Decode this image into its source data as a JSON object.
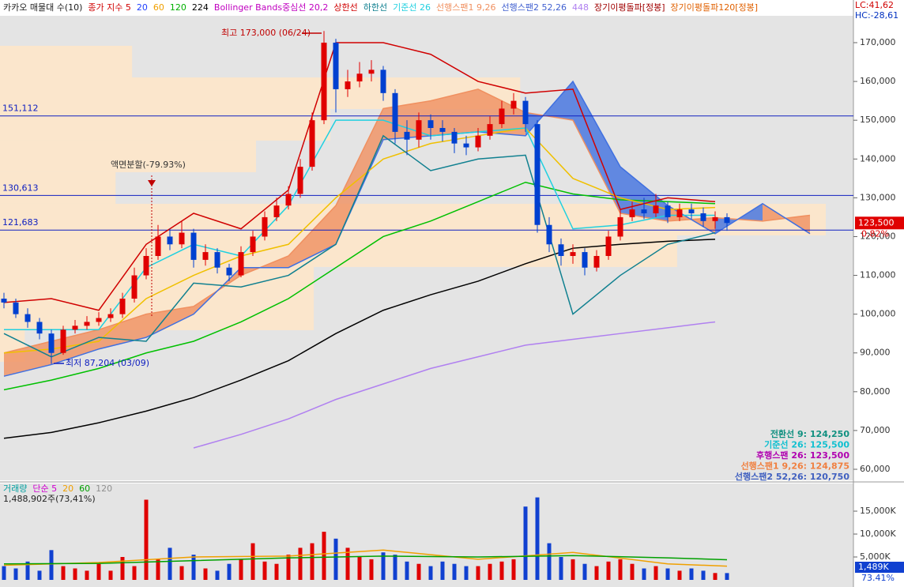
{
  "chart_data": [
    {
      "type": "candlestick",
      "legend": [
        {
          "text": "카카오 매물대 수(10)",
          "color": "#202020"
        },
        {
          "text": "종가 지수 5",
          "color": "#d00000"
        },
        {
          "text": "20",
          "color": "#2040ff"
        },
        {
          "text": "60",
          "color": "#f0a000"
        },
        {
          "text": "120",
          "color": "#00b000"
        },
        {
          "text": "224",
          "color": "#000000"
        },
        {
          "text": "Bollinger Bands중심선 20,2",
          "color": "#c000c0"
        },
        {
          "text": "상한선",
          "color": "#d00000"
        },
        {
          "text": "하한선",
          "color": "#108090"
        },
        {
          "text": "기준선 26",
          "color": "#20d0e0"
        },
        {
          "text": "선행스팬1 9,26",
          "color": "#f09060"
        },
        {
          "text": "선행스팬2 52,26",
          "color": "#4060d0"
        },
        {
          "text": "448",
          "color": "#b080f0"
        },
        {
          "text": "장기이평돌파[정봉]",
          "color": "#a00000"
        },
        {
          "text": "장기이평돌파120[정봉]",
          "color": "#e06000"
        }
      ],
      "corner_labels": [
        {
          "text": "LC:41,62",
          "color": "#d00000"
        },
        {
          "text": "HC:-28,61",
          "color": "#0030c0"
        }
      ],
      "open": [
        104000,
        103000,
        100000,
        98000,
        95000,
        90000,
        96000,
        97000,
        98000,
        99000,
        100000,
        104000,
        110000,
        115000,
        120000,
        118000,
        121000,
        114000,
        116000,
        112000,
        110000,
        116000,
        120000,
        125000,
        128000,
        131000,
        138000,
        150000,
        170000,
        158000,
        160000,
        162000,
        163000,
        157000,
        147000,
        145000,
        150000,
        148000,
        147000,
        144000,
        143000,
        146000,
        149000,
        153000,
        155000,
        149000,
        123000,
        118000,
        115000,
        116000,
        112000,
        115000,
        120000,
        125000,
        127000,
        126000,
        128000,
        125000,
        127000,
        126000,
        124000,
        125000
      ],
      "high": [
        105500,
        104000,
        101500,
        99000,
        96000,
        97000,
        98500,
        99500,
        100500,
        101500,
        105500,
        112000,
        117000,
        123000,
        122000,
        124000,
        122000,
        118000,
        117000,
        113000,
        117500,
        121500,
        126500,
        130000,
        133000,
        140000,
        152000,
        173000,
        171000,
        163000,
        165000,
        165500,
        164000,
        158000,
        150000,
        152000,
        151500,
        150000,
        148000,
        146000,
        148000,
        151000,
        155000,
        157000,
        156000,
        150000,
        125000,
        119500,
        118000,
        117000,
        116500,
        121500,
        127000,
        129000,
        130000,
        131000,
        129000,
        128500,
        128500,
        127500,
        126500,
        126000
      ],
      "low": [
        101500,
        99000,
        96500,
        93500,
        87204,
        89500,
        95000,
        96000,
        97000,
        98000,
        99000,
        103000,
        109000,
        114000,
        116500,
        117000,
        112000,
        112500,
        110500,
        108500,
        109500,
        115000,
        119000,
        124000,
        127000,
        130000,
        137000,
        149000,
        152000,
        156000,
        158500,
        160000,
        155000,
        144000,
        141000,
        143000,
        145000,
        144500,
        141500,
        141000,
        142000,
        145000,
        148000,
        151500,
        147000,
        121000,
        116000,
        112500,
        113000,
        110000,
        111000,
        114000,
        119000,
        124000,
        124500,
        125000,
        123500,
        124000,
        124500,
        122500,
        122000,
        121500
      ],
      "close": [
        103000,
        100000,
        98000,
        95000,
        90000,
        96000,
        97000,
        98000,
        99000,
        100000,
        104000,
        110000,
        115000,
        120000,
        118000,
        121000,
        114000,
        116000,
        112000,
        110000,
        116000,
        120000,
        125000,
        128000,
        131000,
        138000,
        150000,
        170000,
        158000,
        160000,
        162000,
        163000,
        157000,
        147000,
        145000,
        150000,
        148000,
        147000,
        144000,
        143000,
        146000,
        149000,
        153000,
        155000,
        149000,
        123000,
        118000,
        115000,
        116000,
        112000,
        115000,
        120000,
        125000,
        127000,
        126000,
        128000,
        125000,
        127000,
        126000,
        124000,
        125000,
        123500
      ],
      "cloud": {
        "x": [
          0,
          4,
          8,
          12,
          16,
          20,
          24,
          28,
          32,
          36,
          40,
          44,
          48,
          52,
          56,
          60,
          64,
          68
        ],
        "span1": {
          "color": "#f09060",
          "values": [
            90000,
            93000,
            96000,
            100000,
            102000,
            110000,
            115000,
            128000,
            153000,
            155000,
            158000,
            152000,
            150000,
            126000,
            124000,
            124875,
            124000,
            125500
          ]
        },
        "span2": {
          "color": "#4070e0",
          "values": [
            84000,
            87000,
            91000,
            94000,
            100000,
            112000,
            112000,
            118000,
            145000,
            146000,
            147000,
            146000,
            160000,
            138000,
            128000,
            120750,
            128500,
            120750
          ]
        }
      },
      "series": [
        {
          "color": "#000000",
          "x": [
            0,
            4,
            8,
            12,
            16,
            20,
            24,
            28,
            32,
            36,
            40,
            44,
            48,
            52,
            56,
            60
          ],
          "values": [
            68000,
            69500,
            72000,
            75000,
            78500,
            83000,
            88000,
            95000,
            101000,
            105000,
            108500,
            113000,
            117000,
            118000,
            118800,
            119300
          ]
        },
        {
          "color": "#b080f0",
          "x": [
            16,
            20,
            24,
            28,
            32,
            36,
            40,
            44,
            48,
            52,
            56,
            60
          ],
          "values": [
            65500,
            69000,
            73000,
            78000,
            82000,
            86000,
            89000,
            92000,
            93500,
            95000,
            96500,
            98000
          ]
        },
        {
          "color": "#00c000",
          "x": [
            0,
            4,
            8,
            12,
            16,
            20,
            24,
            28,
            32,
            36,
            40,
            44,
            48,
            52,
            56,
            60
          ],
          "values": [
            80500,
            83000,
            86000,
            90000,
            93000,
            98000,
            104000,
            112000,
            120000,
            124000,
            129000,
            134000,
            131000,
            129500,
            129000,
            128500
          ]
        },
        {
          "color": "#f0c000",
          "x": [
            0,
            4,
            8,
            12,
            16,
            20,
            24,
            28,
            32,
            36,
            40,
            44,
            48,
            52,
            56,
            60
          ],
          "values": [
            90000,
            91000,
            93000,
            104000,
            110000,
            115000,
            118000,
            130000,
            140000,
            144000,
            146000,
            148000,
            135000,
            130000,
            127000,
            127500
          ]
        },
        {
          "color": "#d00000",
          "x": [
            0,
            4,
            8,
            12,
            16,
            20,
            24,
            28,
            32,
            36,
            40,
            44,
            48,
            52,
            56,
            60
          ],
          "values": [
            103000,
            104000,
            101000,
            118000,
            126000,
            122000,
            132000,
            170000,
            170000,
            167000,
            160000,
            157000,
            158000,
            127000,
            130000,
            129000
          ]
        },
        {
          "color": "#108090",
          "x": [
            0,
            4,
            8,
            12,
            16,
            20,
            24,
            28,
            32,
            36,
            40,
            44,
            48,
            52,
            56,
            60
          ],
          "values": [
            95000,
            89000,
            94000,
            93000,
            108000,
            107000,
            110000,
            118000,
            146000,
            137000,
            140000,
            141000,
            100000,
            110000,
            118000,
            121000
          ]
        },
        {
          "color": "#20d0e0",
          "x": [
            0,
            4,
            8,
            12,
            16,
            20,
            24,
            28,
            32,
            36,
            40,
            44,
            48,
            52,
            56,
            60
          ],
          "values": [
            96000,
            96000,
            96000,
            112000,
            118000,
            115000,
            128000,
            150000,
            150000,
            146000,
            147000,
            148000,
            122000,
            123000,
            125500,
            125500
          ]
        }
      ],
      "volume_profile": {
        "bins": [
          87719,
          95866,
          104012,
          112159,
          120305,
          128452,
          136599,
          144745,
          152892,
          161039,
          169185
        ],
        "values": [
          3,
          38,
          38,
          82,
          100,
          14,
          31,
          40,
          63,
          16
        ]
      },
      "levels": [
        {
          "value": 151112,
          "label": "151,112"
        },
        {
          "value": 130613,
          "label": "130,613"
        },
        {
          "value": 121683,
          "label": "121,683"
        }
      ],
      "current": {
        "value": 123500,
        "label": "123,500",
        "change": "0.82%"
      },
      "annotations": {
        "high": "최고 173,000 (06/24)",
        "low": "최저 87,204 (03/09)",
        "split": "액면분할(-79.93%)"
      },
      "info": [
        {
          "text": "전환선 9: 124,250",
          "color": "#109080"
        },
        {
          "text": "기준선 26: 125,500",
          "color": "#10c0d0"
        },
        {
          "text": "후행스팬 26: 123,500",
          "color": "#b000b0"
        },
        {
          "text": "선행스팬1 9,26: 124,875",
          "color": "#f08040"
        },
        {
          "text": "선행스팬2 52,26: 120,750",
          "color": "#4060c0"
        }
      ],
      "ylim": [
        57760,
        176925
      ],
      "yticks": [
        {
          "value": 60000,
          "label": "60,000"
        },
        {
          "value": 70000,
          "label": "70,000"
        },
        {
          "value": 80000,
          "label": "80,000"
        },
        {
          "value": 90000,
          "label": "90,000"
        },
        {
          "value": 100000,
          "label": "100,000"
        },
        {
          "value": 110000,
          "label": "110,000"
        },
        {
          "value": 120000,
          "label": "120,000"
        },
        {
          "value": 130000,
          "label": "130,000"
        },
        {
          "value": 140000,
          "label": "140,000"
        },
        {
          "value": 150000,
          "label": "150,000"
        },
        {
          "value": 160000,
          "label": "160,000"
        },
        {
          "value": 170000,
          "label": "170,000"
        }
      ]
    },
    {
      "type": "bar",
      "legend": [
        {
          "text": "거래량",
          "color": "#00a0a0"
        },
        {
          "text": "단순 5",
          "color": "#d000d0"
        },
        {
          "text": "20",
          "color": "#f0a000"
        },
        {
          "text": "60",
          "color": "#00a000"
        },
        {
          "text": "120",
          "color": "#909090"
        }
      ],
      "subtitle": "1,488,902주(73,41%)",
      "values": [
        3000,
        2500,
        4000,
        2000,
        6500,
        3000,
        2500,
        2000,
        3500,
        2000,
        5000,
        3000,
        17500,
        4500,
        7000,
        3000,
        5500,
        2500,
        2000,
        3500,
        4500,
        8000,
        4000,
        3500,
        5500,
        7000,
        8000,
        10500,
        9000,
        7000,
        5000,
        4500,
        6000,
        5500,
        4000,
        3500,
        3000,
        4000,
        3500,
        3000,
        3000,
        3500,
        4000,
        4500,
        16000,
        18000,
        8000,
        5000,
        4500,
        3500,
        3000,
        4000,
        4500,
        3500,
        2500,
        3000,
        2500,
        2000,
        2500,
        2000,
        1500,
        1489
      ],
      "up_color": "#e00000",
      "down_color": "#1040d0",
      "series": [
        {
          "color": "#f0a000",
          "x": [
            0,
            8,
            16,
            24,
            32,
            40,
            48,
            56,
            61
          ],
          "values": [
            3200,
            3800,
            5000,
            5200,
            6500,
            4500,
            6000,
            3500,
            3000
          ]
        },
        {
          "color": "#00a000",
          "x": [
            0,
            8,
            16,
            24,
            32,
            40,
            48,
            56,
            61
          ],
          "values": [
            3500,
            3600,
            4200,
            4800,
            5200,
            5000,
            5300,
            4800,
            4400
          ]
        }
      ],
      "current": {
        "label": "1,489K",
        "change": "73.41%"
      },
      "ylim": [
        -1034,
        21034
      ],
      "yticks": [
        {
          "value": 5000,
          "label": "5,000K"
        },
        {
          "value": 10000,
          "label": "10,000K"
        },
        {
          "value": 15000,
          "label": "15,000K"
        }
      ]
    }
  ]
}
